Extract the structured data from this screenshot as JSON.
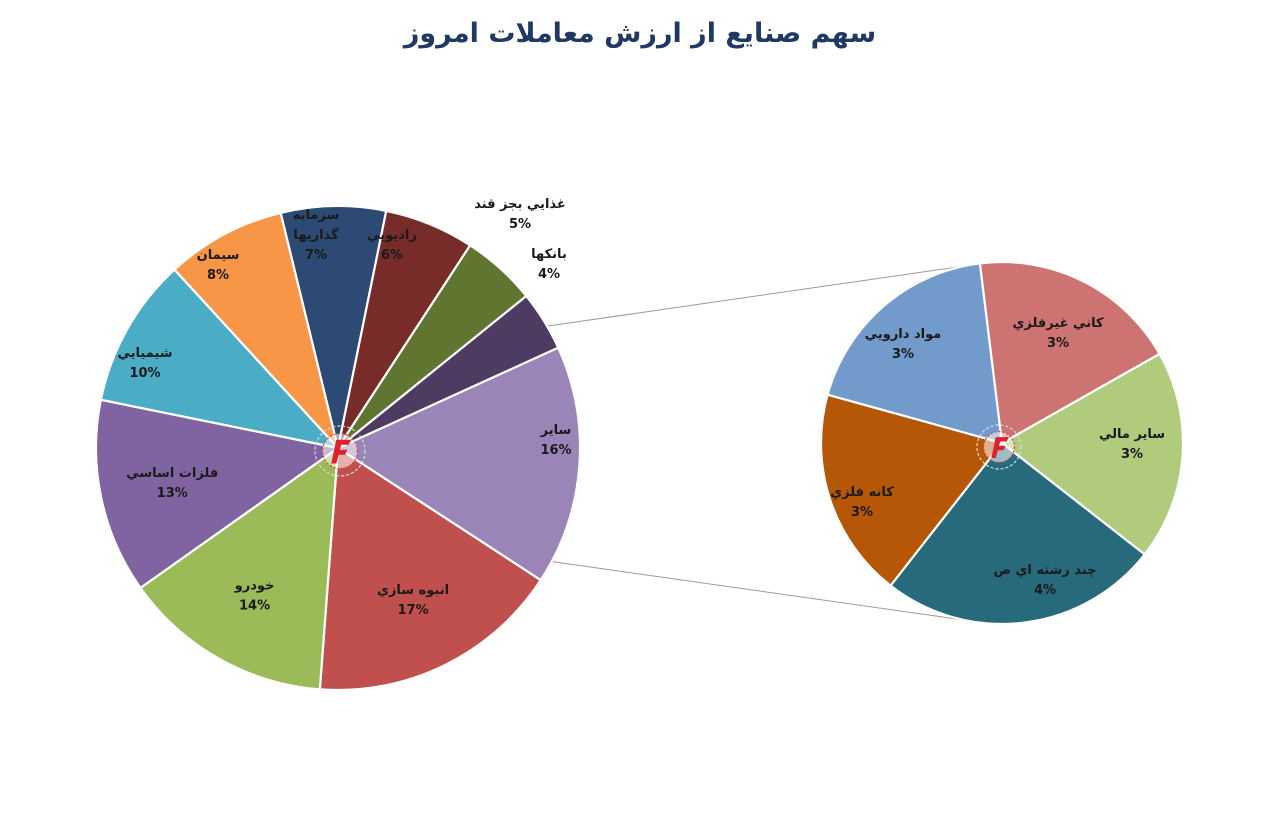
{
  "chart_data": [
    {
      "type": "pie",
      "title": "سهم صنایع از ارزش معاملات امروز",
      "slices": [
        {
          "label": "ساير",
          "value_label": "16%",
          "value": 16,
          "color": "#9a84b8"
        },
        {
          "label": "انبوه سازي",
          "value_label": "17%",
          "value": 17,
          "color": "#c0504d"
        },
        {
          "label": "خودرو",
          "value_label": "14%",
          "value": 14,
          "color": "#9bbb59"
        },
        {
          "label": "فلزات اساسي",
          "value_label": "13%",
          "value": 13,
          "color": "#8064a2"
        },
        {
          "label": "شيميايي",
          "value_label": "10%",
          "value": 10,
          "color": "#4bacc6"
        },
        {
          "label": "سيمان",
          "value_label": "8%",
          "value": 8,
          "color": "#f79646"
        },
        {
          "label": "سرمايه گذاريها",
          "label_lines": [
            "سرمايه",
            "گذاريها"
          ],
          "value_label": "7%",
          "value": 7,
          "color": "#2c4a74"
        },
        {
          "label": "راديويي",
          "value_label": "6%",
          "value": 6,
          "color": "#772c2a"
        },
        {
          "label": "غذايي بجز قند",
          "value_label": "5%",
          "value": 5,
          "color": "#5f7530"
        },
        {
          "label": "بانکها",
          "value_label": "4%",
          "value": 4,
          "color": "#4d3b62"
        }
      ]
    },
    {
      "type": "pie",
      "title": "",
      "slices": [
        {
          "label": "ساير مالي",
          "value_label": "3%",
          "value": 3,
          "color": "#b0cb7c"
        },
        {
          "label": "چند رشته اي ص",
          "value_label": "4%",
          "value": 4,
          "color": "#276a7c"
        },
        {
          "label": "کانه فلزي",
          "value_label": "3%",
          "value": 3,
          "color": "#b65708"
        },
        {
          "label": "مواد دارويي",
          "value_label": "3%",
          "value": 3,
          "color": "#729aca"
        },
        {
          "label": "کاني غيرفلزي",
          "value_label": "3%",
          "value": 3,
          "color": "#cd7371"
        }
      ]
    }
  ]
}
